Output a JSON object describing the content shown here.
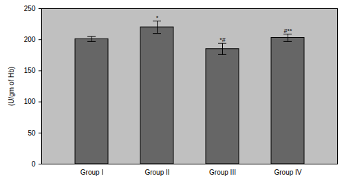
{
  "chart_data": {
    "type": "bar",
    "categories": [
      "Group I",
      "Group II",
      "Group III",
      "Group IV"
    ],
    "values": [
      201,
      220,
      185,
      203
    ],
    "errors": [
      4,
      10,
      9,
      6
    ],
    "annotations": [
      null,
      "*",
      "*#",
      "#**"
    ],
    "color": "#666666",
    "ylabel": "(U/gm of Hb)",
    "ylim": [
      0,
      250
    ],
    "yticks": [
      0,
      50,
      100,
      150,
      200,
      250
    ],
    "grid": false
  }
}
